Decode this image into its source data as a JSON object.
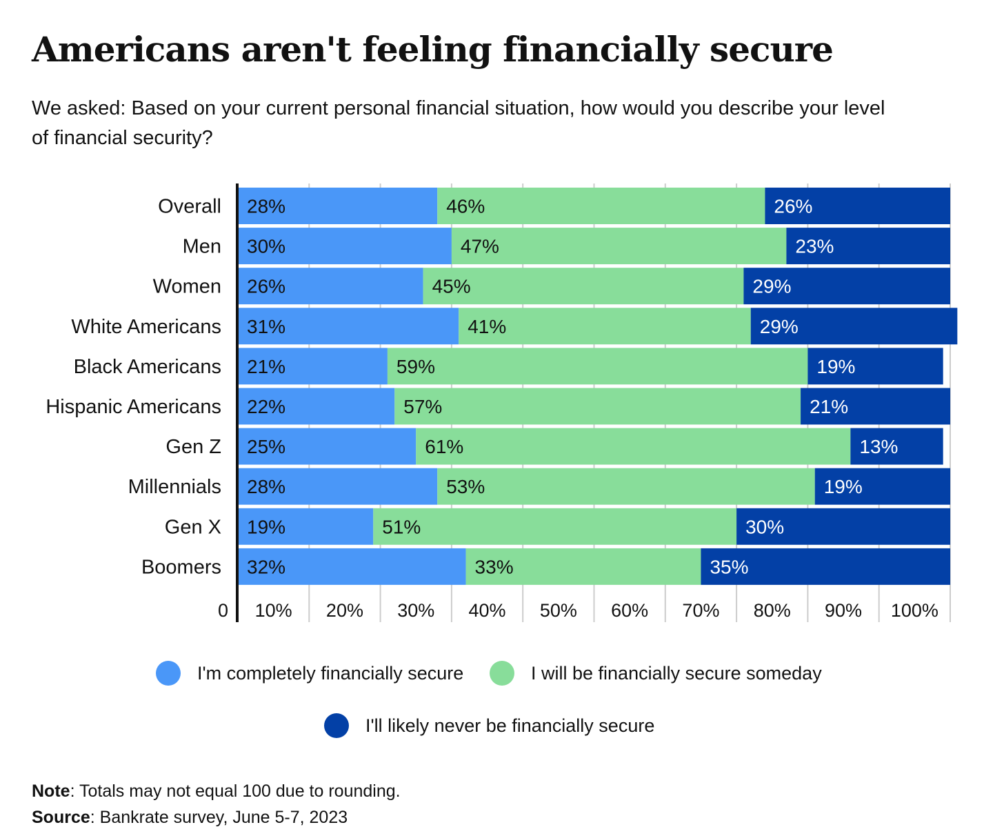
{
  "title": "Americans aren't feeling financially secure",
  "subtitle": "We asked: Based on your current personal financial situation, how would you describe your level of financial security?",
  "colors": {
    "completely_secure": "#4a97f8",
    "someday": "#88dd9a",
    "never": "#0340a6",
    "gridline": "#cccccc",
    "axis": "#111111"
  },
  "legend": [
    {
      "label": "I'm completely financially secure",
      "color": "#4a97f8"
    },
    {
      "label": "I will be financially secure someday",
      "color": "#88dd9a"
    },
    {
      "label": "I'll likely never be financially secure",
      "color": "#0340a6"
    }
  ],
  "chart_data": {
    "type": "bar",
    "orientation": "horizontal",
    "stacked": true,
    "categories": [
      "Overall",
      "Men",
      "Women",
      "White Americans",
      "Black Americans",
      "Hispanic Americans",
      "Gen Z",
      "Millennials",
      "Gen X",
      "Boomers"
    ],
    "series": [
      {
        "name": "I'm completely financially secure",
        "values": [
          28,
          30,
          26,
          31,
          21,
          22,
          25,
          28,
          19,
          32
        ],
        "labels": [
          "28%",
          "30%",
          "26%",
          "31%",
          "21%",
          "22%",
          "25%",
          "28%",
          "19%",
          "32%"
        ]
      },
      {
        "name": "I will be financially secure someday",
        "values": [
          46,
          47,
          45,
          41,
          59,
          57,
          61,
          53,
          51,
          33
        ],
        "labels": [
          "46%",
          "47%",
          "45%",
          "41%",
          "59%",
          "57%",
          "61%",
          "53%",
          "51%",
          "33%"
        ]
      },
      {
        "name": "I'll likely never be financially secure",
        "values": [
          26,
          23,
          29,
          29,
          19,
          21,
          13,
          19,
          30,
          35
        ],
        "labels": [
          "26%",
          "23%",
          "29%",
          "29%",
          "19%",
          "21%",
          "13%",
          "19%",
          "30%",
          "35%"
        ]
      }
    ],
    "xlim": [
      0,
      100
    ],
    "xticks": [
      "0",
      "10%",
      "20%",
      "30%",
      "40%",
      "50%",
      "60%",
      "70%",
      "80%",
      "90%",
      "100%"
    ],
    "grid": true,
    "legend_position": "bottom"
  },
  "note": {
    "label": "Note",
    "text": ": Totals may not equal 100 due to rounding."
  },
  "source": {
    "label": "Source",
    "text": ": Bankrate survey, June 5-7, 2023"
  }
}
